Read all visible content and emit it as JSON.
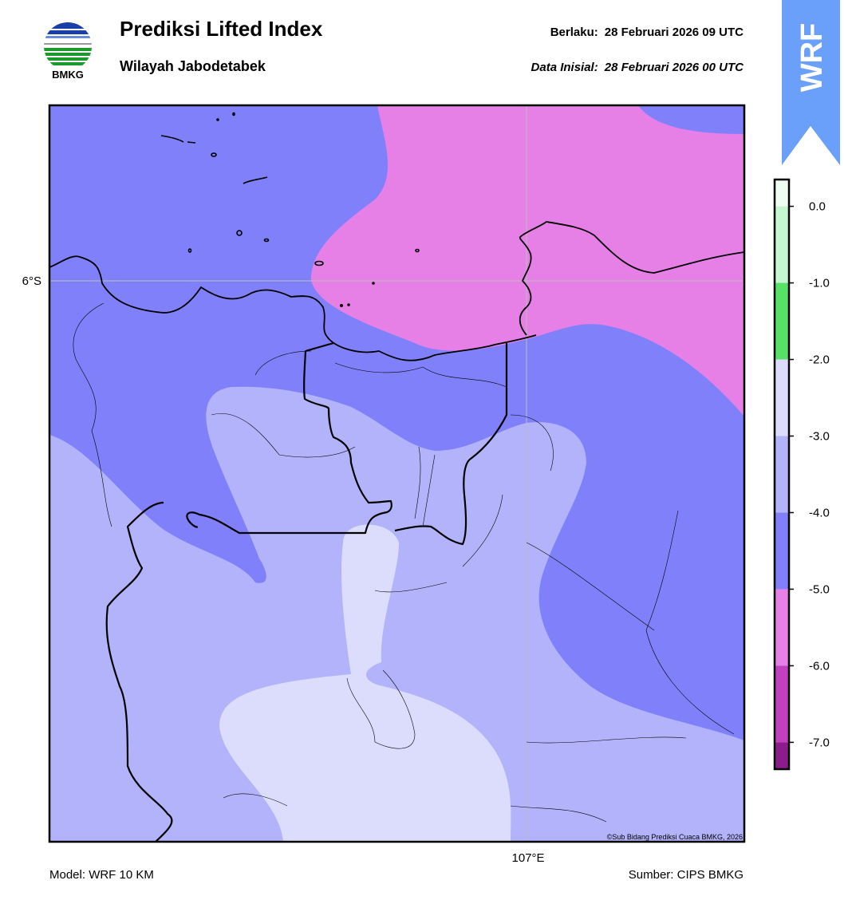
{
  "header": {
    "title": "Prediksi Lifted Index",
    "subtitle": "Wilayah Jabodetabek",
    "valid_label": "Berlaku:",
    "valid_time": "28 Februari 2026 09 UTC",
    "init_label": "Data Inisial:",
    "init_time": "28 Februari 2026 00 UTC"
  },
  "logo": {
    "text": "BMKG"
  },
  "badge": "WRF",
  "map": {
    "lat_label": "6°S",
    "lon_label": "107°E",
    "credit": "©Sub Bidang Prediksi Cuaca BMKG, 2026"
  },
  "colorbar": {
    "bounds": [
      0.35,
      0,
      -1,
      -2,
      -3,
      -4,
      -5,
      -6,
      -7,
      -7.35
    ],
    "colors": [
      "#eefff2",
      "#c4f7cf",
      "#55e266",
      "#dcdcfc",
      "#b3b3fb",
      "#8080fa",
      "#e680e6",
      "#c040c0",
      "#8c1c8c"
    ],
    "ticks": [
      {
        "value": 0,
        "label": "0.0"
      },
      {
        "value": -1,
        "label": "-1.0"
      },
      {
        "value": -2,
        "label": "-2.0"
      },
      {
        "value": -3,
        "label": "-3.0"
      },
      {
        "value": -4,
        "label": "-4.0"
      },
      {
        "value": -5,
        "label": "-5.0"
      },
      {
        "value": -6,
        "label": "-6.0"
      },
      {
        "value": -7,
        "label": "-7.0"
      }
    ]
  },
  "footer": {
    "model": "Model: WRF 10 KM",
    "source": "Sumber: CIPS BMKG"
  }
}
